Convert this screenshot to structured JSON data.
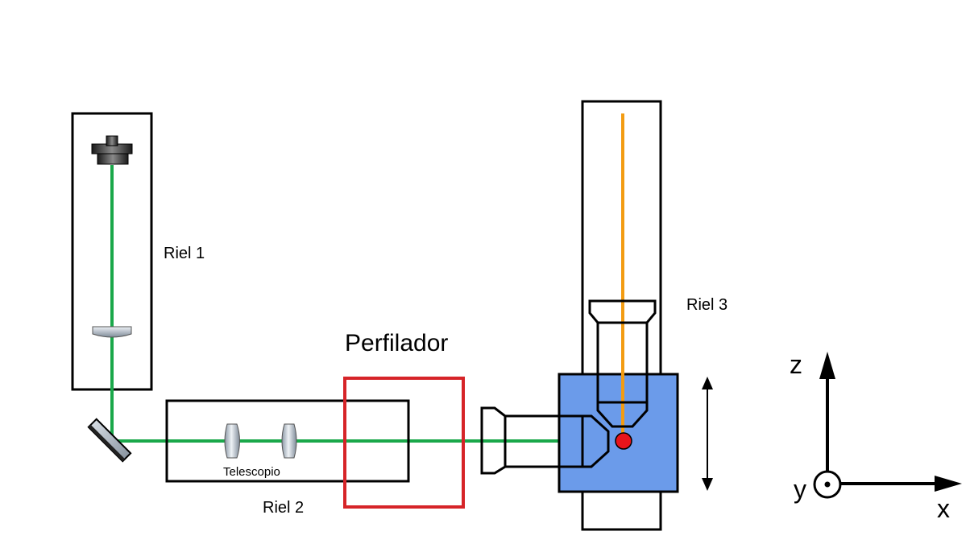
{
  "labels": {
    "rail1": "Riel 1",
    "rail2": "Riel 2",
    "rail3": "Riel 3",
    "telescope": "Telescopio",
    "profiler": "Perfilador"
  },
  "axes": {
    "x": "x",
    "y": "y",
    "z": "z"
  },
  "colors": {
    "laser_beam": "#1aa84a",
    "emission_beam": "#f39c12",
    "profiler_box": "#d62428",
    "sample_stage": "#6b9bea",
    "sample_spot": "#e8141b",
    "outline": "#000000"
  }
}
